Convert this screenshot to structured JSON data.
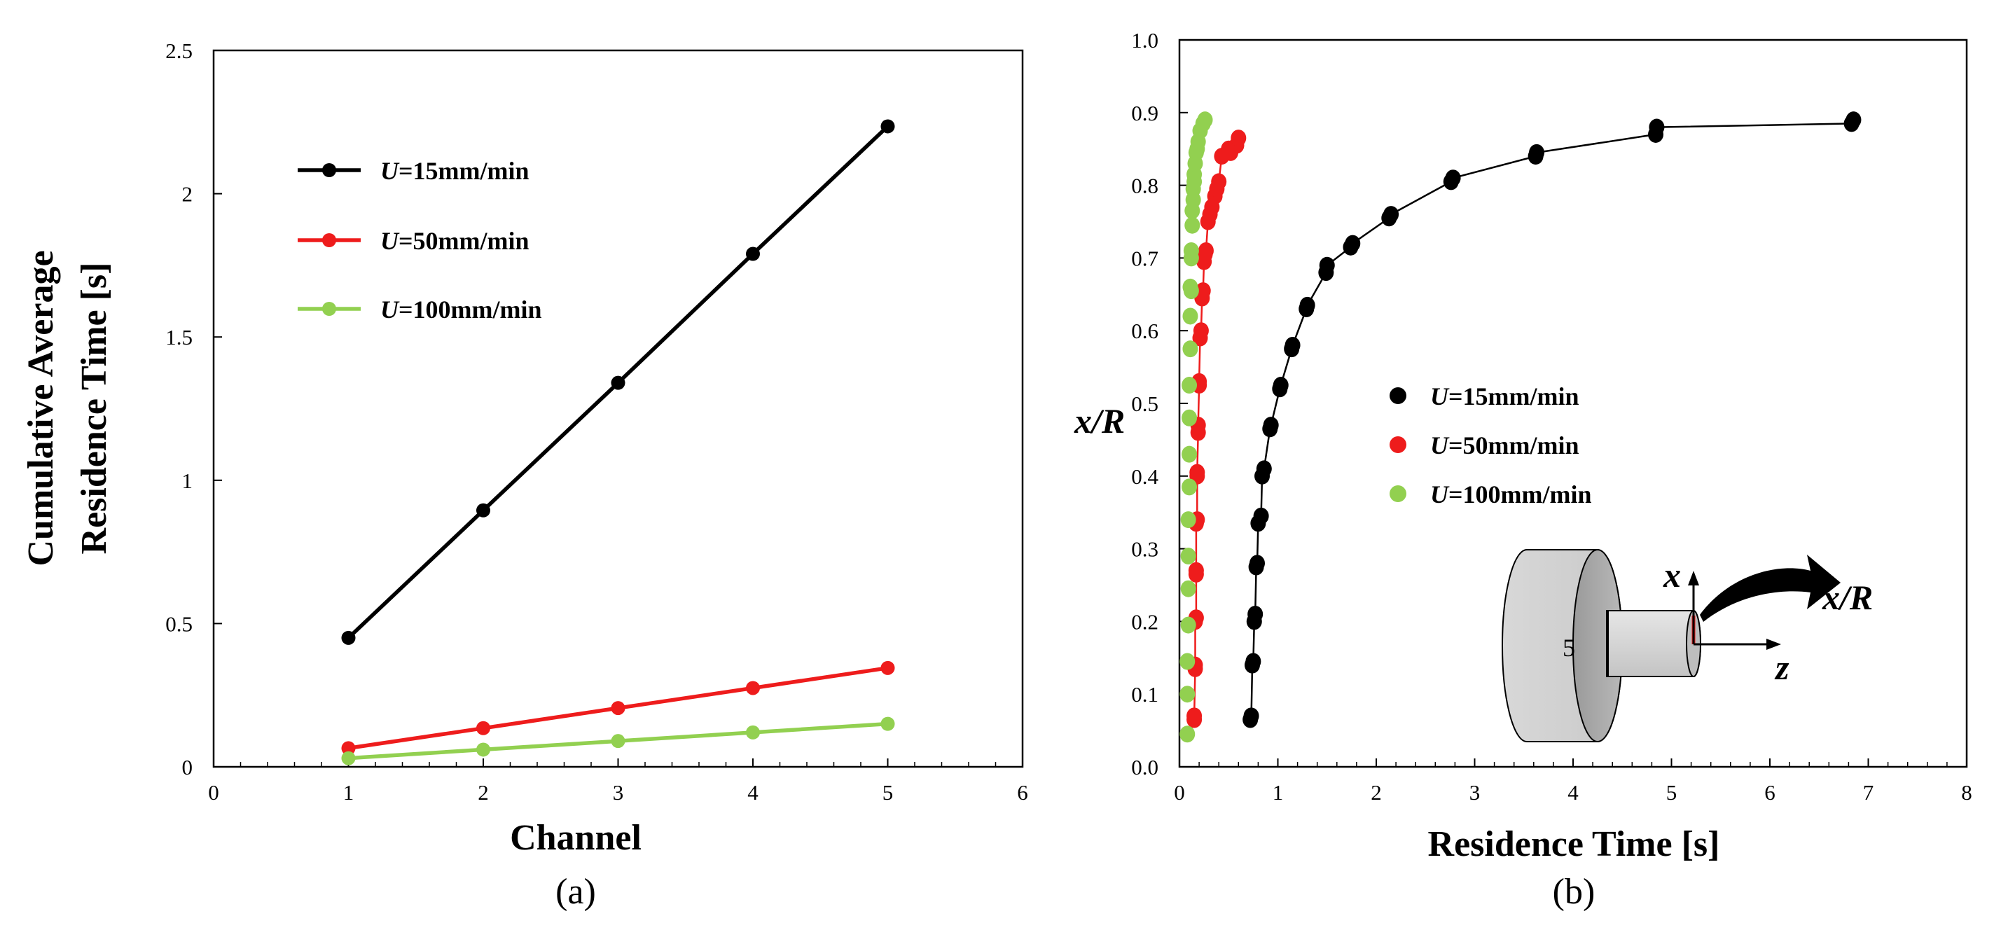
{
  "chart_data": [
    {
      "type": "line",
      "panel_label": "(a)",
      "xlabel": "Channel",
      "ylabel_lines": [
        "Cumulative Average",
        "Residence Time [s]"
      ],
      "xlim": [
        0,
        6
      ],
      "ylim": [
        0,
        2.5
      ],
      "xticks": [
        "0",
        "1",
        "2",
        "3",
        "4",
        "5",
        "6"
      ],
      "yticks": [
        "0",
        "0.5",
        "1",
        "1.5",
        "2",
        "2.5"
      ],
      "legend_position": "upper-left",
      "series": [
        {
          "var": "U",
          "rest": "=15mm/min",
          "color": "#000000",
          "x": [
            1,
            2,
            3,
            4,
            5
          ],
          "y": [
            0.45,
            0.895,
            1.34,
            1.79,
            2.235
          ]
        },
        {
          "var": "U",
          "rest": "=50mm/min",
          "color": "#ee1c1c",
          "x": [
            1,
            2,
            3,
            4,
            5
          ],
          "y": [
            0.065,
            0.135,
            0.205,
            0.275,
            0.345
          ]
        },
        {
          "var": "U",
          "rest": "=100mm/min",
          "color": "#92d050",
          "x": [
            1,
            2,
            3,
            4,
            5
          ],
          "y": [
            0.03,
            0.06,
            0.09,
            0.12,
            0.15
          ]
        }
      ]
    },
    {
      "type": "scatter",
      "panel_label": "(b)",
      "xlabel": "Residence Time [s]",
      "ylabel": "x/R",
      "xlim": [
        0,
        8
      ],
      "ylim": [
        0,
        1.0
      ],
      "xticks": [
        "0",
        "1",
        "2",
        "3",
        "4",
        "5",
        "6",
        "7",
        "8"
      ],
      "yticks": [
        "0.0",
        "0.1",
        "0.2",
        "0.3",
        "0.4",
        "0.5",
        "0.6",
        "0.7",
        "0.8",
        "0.9",
        "1.0"
      ],
      "legend_position": "center-right",
      "series": [
        {
          "var": "U",
          "rest": "=15mm/min",
          "color": "#000000",
          "x": [
            0.72,
            0.73,
            0.74,
            0.75,
            0.76,
            0.77,
            0.78,
            0.79,
            0.8,
            0.83,
            0.84,
            0.86,
            0.92,
            0.93,
            1.02,
            1.03,
            1.14,
            1.15,
            1.29,
            1.3,
            1.49,
            1.5,
            1.74,
            1.76,
            2.13,
            2.15,
            2.76,
            2.78,
            3.62,
            3.63,
            4.84,
            4.85,
            6.83,
            6.85
          ],
          "y": [
            0.065,
            0.07,
            0.14,
            0.145,
            0.2,
            0.21,
            0.275,
            0.28,
            0.335,
            0.345,
            0.4,
            0.41,
            0.465,
            0.47,
            0.52,
            0.525,
            0.575,
            0.58,
            0.63,
            0.635,
            0.68,
            0.69,
            0.715,
            0.72,
            0.755,
            0.76,
            0.805,
            0.81,
            0.84,
            0.845,
            0.87,
            0.88,
            0.885,
            0.89
          ]
        },
        {
          "var": "U",
          "rest": "=50mm/min",
          "color": "#ee1c1c",
          "x": [
            0.15,
            0.15,
            0.16,
            0.16,
            0.16,
            0.17,
            0.17,
            0.17,
            0.17,
            0.18,
            0.18,
            0.18,
            0.19,
            0.19,
            0.2,
            0.2,
            0.21,
            0.22,
            0.23,
            0.24,
            0.25,
            0.26,
            0.27,
            0.29,
            0.31,
            0.33,
            0.36,
            0.38,
            0.4,
            0.43,
            0.5,
            0.52,
            0.58,
            0.6
          ],
          "y": [
            0.065,
            0.07,
            0.135,
            0.14,
            0.2,
            0.205,
            0.265,
            0.27,
            0.335,
            0.34,
            0.4,
            0.405,
            0.46,
            0.47,
            0.525,
            0.53,
            0.59,
            0.6,
            0.645,
            0.655,
            0.695,
            0.705,
            0.71,
            0.75,
            0.76,
            0.77,
            0.785,
            0.795,
            0.805,
            0.84,
            0.85,
            0.845,
            0.855,
            0.865
          ]
        },
        {
          "var": "U",
          "rest": "=100mm/min",
          "color": "#92d050",
          "x": [
            0.08,
            0.08,
            0.08,
            0.09,
            0.09,
            0.09,
            0.09,
            0.1,
            0.1,
            0.1,
            0.1,
            0.11,
            0.11,
            0.11,
            0.12,
            0.12,
            0.12,
            0.13,
            0.13,
            0.14,
            0.14,
            0.15,
            0.15,
            0.16,
            0.17,
            0.18,
            0.19,
            0.21,
            0.24,
            0.26
          ],
          "y": [
            0.045,
            0.1,
            0.145,
            0.195,
            0.245,
            0.29,
            0.34,
            0.385,
            0.43,
            0.48,
            0.525,
            0.575,
            0.62,
            0.66,
            0.7,
            0.655,
            0.71,
            0.745,
            0.765,
            0.78,
            0.795,
            0.805,
            0.815,
            0.83,
            0.845,
            0.85,
            0.86,
            0.875,
            0.885,
            0.89
          ]
        }
      ],
      "inset": {
        "cylinder_label": "5",
        "axis_x": "x",
        "axis_z": "z",
        "arrow_label": "x/R"
      }
    }
  ]
}
